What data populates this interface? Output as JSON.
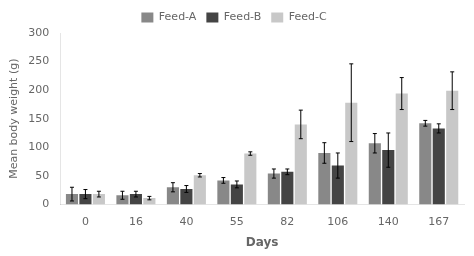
{
  "chart_data": {
    "type": "bar",
    "categories": [
      "0",
      "16",
      "40",
      "55",
      "82",
      "106",
      "140",
      "167"
    ],
    "xlabel": "Days",
    "ylabel": "Mean body weight (g)",
    "series": [
      {
        "name": "Feed-A",
        "color": "#888888",
        "values": [
          18,
          16,
          30,
          42,
          54,
          90,
          107,
          142
        ],
        "errors": [
          12,
          7,
          8,
          5,
          8,
          18,
          17,
          5
        ]
      },
      {
        "name": "Feed-B",
        "color": "#444444",
        "values": [
          18,
          18,
          27,
          35,
          57,
          68,
          95,
          133
        ],
        "errors": [
          8,
          5,
          6,
          6,
          5,
          22,
          30,
          8
        ]
      },
      {
        "name": "Feed-C",
        "color": "#c8c8c8",
        "values": [
          18,
          11,
          51,
          89,
          140,
          178,
          194,
          199
        ],
        "errors": [
          5,
          3,
          3,
          3,
          25,
          68,
          28,
          33
        ]
      }
    ],
    "ylim": [
      0,
      300
    ],
    "yticks": [
      0,
      50,
      100,
      150,
      200,
      250,
      300
    ],
    "grid": false,
    "legend": "top"
  }
}
